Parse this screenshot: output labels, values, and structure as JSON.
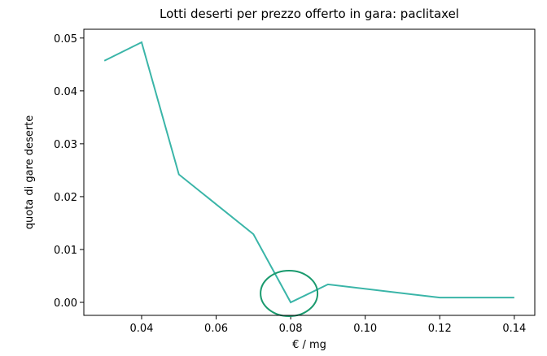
{
  "chart_data": {
    "type": "line",
    "title": "Lotti deserti per prezzo offerto in gara: paclitaxel",
    "xlabel": "€ / mg",
    "ylabel": "quota di gare deserte",
    "x": [
      0.03,
      0.04,
      0.05,
      0.07,
      0.08,
      0.09,
      0.12,
      0.14
    ],
    "series": [
      {
        "name": "quota",
        "color": "#3ab5a8",
        "values": [
          0.0457,
          0.0492,
          0.0242,
          0.0129,
          0.0,
          0.0034,
          0.0009,
          0.0009
        ]
      }
    ],
    "xlim": [
      0.0245,
      0.1455
    ],
    "ylim": [
      -0.00246,
      0.05166
    ],
    "xticks": [
      0.04,
      0.06,
      0.08,
      {
        "value": 0.1,
        "label": "0.10"
      },
      0.12,
      0.14
    ],
    "yticks": [
      {
        "value": 0,
        "label": "0.00"
      },
      0.01,
      0.02,
      0.03,
      0.04,
      0.05
    ],
    "grid": false
  }
}
